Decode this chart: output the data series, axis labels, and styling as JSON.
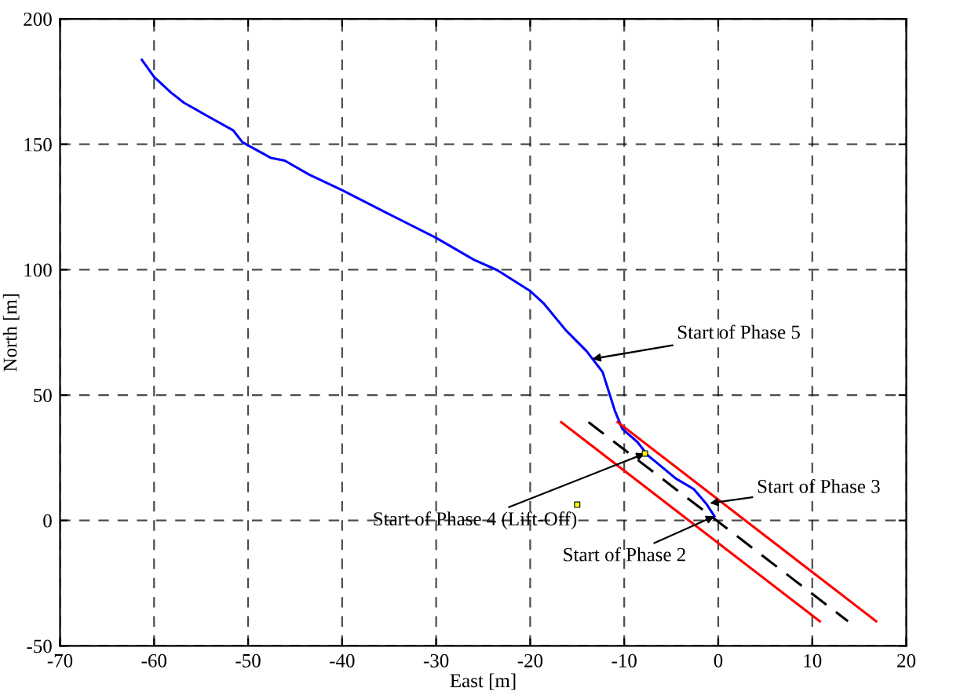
{
  "chart_data": {
    "type": "line",
    "xlabel": "East [m]",
    "ylabel": "North [m]",
    "xlim": [
      -70,
      20
    ],
    "ylim": [
      -50,
      200
    ],
    "xticks": [
      -70,
      -60,
      -50,
      -40,
      -30,
      -20,
      -10,
      0,
      10,
      20
    ],
    "yticks": [
      -50,
      0,
      50,
      100,
      150,
      200
    ],
    "grid": true,
    "legend": false,
    "series": [
      {
        "color": "#0000ff",
        "x": [
          -61.3,
          -60,
          -58.2,
          -56.8,
          -54.1,
          -51.6,
          -50.6,
          -47.6,
          -46.1,
          -43.5,
          -40,
          -35.3,
          -30,
          -26,
          -23.5,
          -20,
          -18.6,
          -16.2,
          -14,
          -12.3,
          -11,
          -10.2,
          -8.6,
          -7.5,
          -4.5,
          -2.6,
          -1.2,
          -0.4
        ],
        "values": [
          183.7,
          176.9,
          170.6,
          166.5,
          160.8,
          155.6,
          150.8,
          144.6,
          143.5,
          137.9,
          131.7,
          122.7,
          112.7,
          104,
          99.8,
          91.5,
          86.7,
          75.8,
          67.5,
          59.2,
          43.8,
          36.5,
          31.3,
          26,
          16.7,
          12.5,
          6.3,
          1.7
        ]
      },
      {
        "color": "#ff0000",
        "x": [
          -10.7,
          16.8
        ],
        "values": [
          39.2,
          -40.2
        ]
      },
      {
        "color": "#ff0000",
        "x": [
          -16.7,
          10.8
        ],
        "values": [
          39.2,
          -40.2
        ]
      },
      {
        "color": "#000000",
        "line_style": "dashed",
        "x": [
          -13.8,
          13.8
        ],
        "values": [
          39.2,
          -40.2
        ]
      },
      {
        "type": "scatter",
        "color": "#ffff00",
        "marker": "square",
        "x": [
          -15,
          -7.8
        ],
        "values": [
          6.3,
          26.7
        ]
      }
    ],
    "annotations": [
      {
        "text": "Start of Phase 5",
        "x": -13.4,
        "y": 64.4
      },
      {
        "text": "Start of Phase 3",
        "x": -0.9,
        "y": 6.9
      },
      {
        "text": "Start of Phase 2",
        "x": -0.4,
        "y": 1.7
      },
      {
        "text": "Start of Phase 4 (Lift-Off)",
        "x": -7.8,
        "y": 26.7
      }
    ]
  }
}
